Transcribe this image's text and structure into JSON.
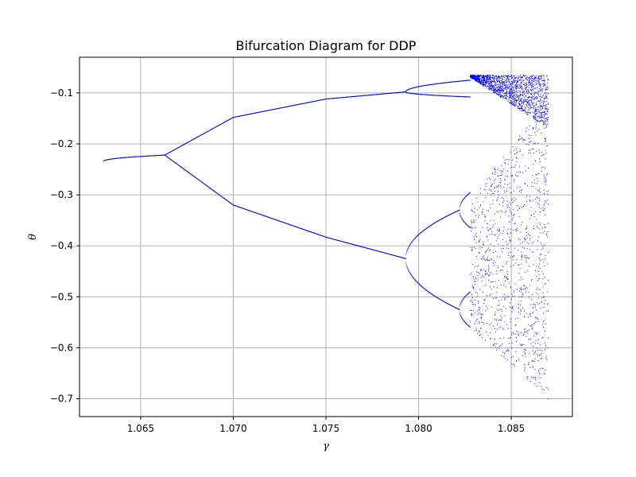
{
  "chart_data": {
    "type": "scatter",
    "title": "Bifurcation Diagram for DDP",
    "xlabel": "γ",
    "ylabel": "θ",
    "xlim": [
      1.0617,
      1.0883
    ],
    "ylim": [
      -0.735,
      -0.03
    ],
    "x_ticks": [
      1.065,
      1.07,
      1.075,
      1.08,
      1.085
    ],
    "x_tick_labels": [
      "1.065",
      "1.070",
      "1.075",
      "1.080",
      "1.085"
    ],
    "y_ticks": [
      -0.1,
      -0.2,
      -0.3,
      -0.4,
      -0.5,
      -0.6,
      -0.7
    ],
    "y_tick_labels": [
      "−0.1",
      "−0.2",
      "−0.3",
      "−0.4",
      "−0.5",
      "−0.6",
      "−0.7"
    ],
    "grid": true,
    "marker_color": "#0000ff",
    "gamma_range": [
      1.063,
      1.087
    ],
    "bifurcation_points": {
      "period2_onset": {
        "gamma": 1.0663,
        "theta": -0.222
      },
      "period4_onset": {
        "gamma": 1.0793,
        "theta": -0.425
      },
      "period8_onset": {
        "gamma": 1.0822,
        "theta": -0.33
      },
      "chaos_onset": {
        "gamma": 1.0828
      }
    },
    "branches": [
      {
        "name": "period-1",
        "gamma": [
          1.063,
          1.0663
        ],
        "theta": [
          -0.234,
          -0.222
        ]
      },
      {
        "name": "period-2 upper",
        "gamma": [
          1.0663,
          1.07,
          1.075,
          1.0793
        ],
        "theta": [
          -0.222,
          -0.148,
          -0.112,
          -0.098
        ]
      },
      {
        "name": "period-2 lower",
        "gamma": [
          1.0663,
          1.07,
          1.075,
          1.0793
        ],
        "theta": [
          -0.222,
          -0.32,
          -0.383,
          -0.425
        ]
      },
      {
        "name": "period-4 upper-a",
        "gamma": [
          1.0793,
          1.0828
        ],
        "theta": [
          -0.098,
          -0.075
        ]
      },
      {
        "name": "period-4 upper-b",
        "gamma": [
          1.0793,
          1.0828
        ],
        "theta": [
          -0.098,
          -0.108
        ]
      },
      {
        "name": "period-4 lower-a",
        "gamma": [
          1.0793,
          1.0822
        ],
        "theta": [
          -0.425,
          -0.33
        ]
      },
      {
        "name": "period-4 lower-b",
        "gamma": [
          1.0793,
          1.0822
        ],
        "theta": [
          -0.425,
          -0.525
        ]
      }
    ],
    "chaotic_band": {
      "gamma": [
        1.0828,
        1.087
      ],
      "upper_band_theta": [
        -0.07,
        -0.17
      ],
      "lower_band_top_theta": [
        -0.31,
        -0.11
      ],
      "lower_band_bottom_theta": [
        -0.56,
        -0.7
      ]
    }
  }
}
